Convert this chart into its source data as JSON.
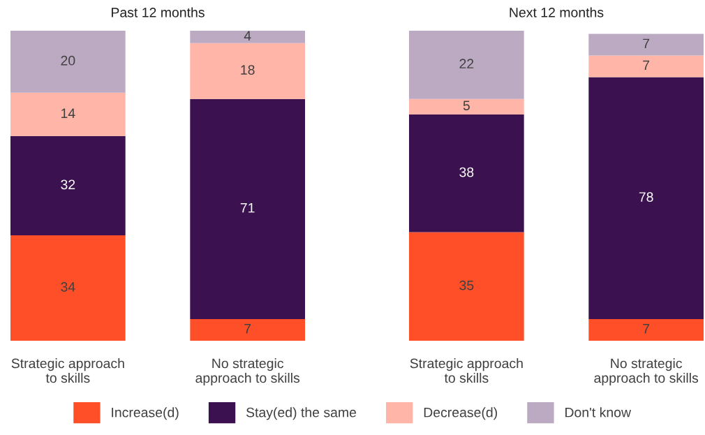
{
  "chart_data": [
    {
      "type": "bar",
      "title": "Past 12 months",
      "stacked": true,
      "data_labels": true,
      "legend": "bottom",
      "grid": false,
      "categories": [
        "Strategic approach\nto skills",
        "No strategic\napproach to skills"
      ],
      "series": [
        {
          "name": "Increase(d)",
          "color": "#ff4f28",
          "values": [
            34,
            7
          ]
        },
        {
          "name": "Stay(ed) the same",
          "color": "#3c1150",
          "values": [
            32,
            71
          ]
        },
        {
          "name": "Decrease(d)",
          "color": "#ffb5a7",
          "values": [
            14,
            18
          ]
        },
        {
          "name": "Don't know",
          "color": "#bcaac3",
          "values": [
            20,
            4
          ]
        }
      ]
    },
    {
      "type": "bar",
      "title": "Next 12 months",
      "stacked": true,
      "data_labels": true,
      "grid": false,
      "categories": [
        "Strategic approach\nto skills",
        "No strategic\napproach to skills"
      ],
      "series": [
        {
          "name": "Increase(d)",
          "color": "#ff4f28",
          "values": [
            35,
            7
          ]
        },
        {
          "name": "Stay(ed) the same",
          "color": "#3c1150",
          "values": [
            38,
            78
          ]
        },
        {
          "name": "Decrease(d)",
          "color": "#ffb5a7",
          "values": [
            5,
            7
          ]
        },
        {
          "name": "Don't know",
          "color": "#bcaac3",
          "values": [
            22,
            7
          ]
        }
      ]
    }
  ]
}
